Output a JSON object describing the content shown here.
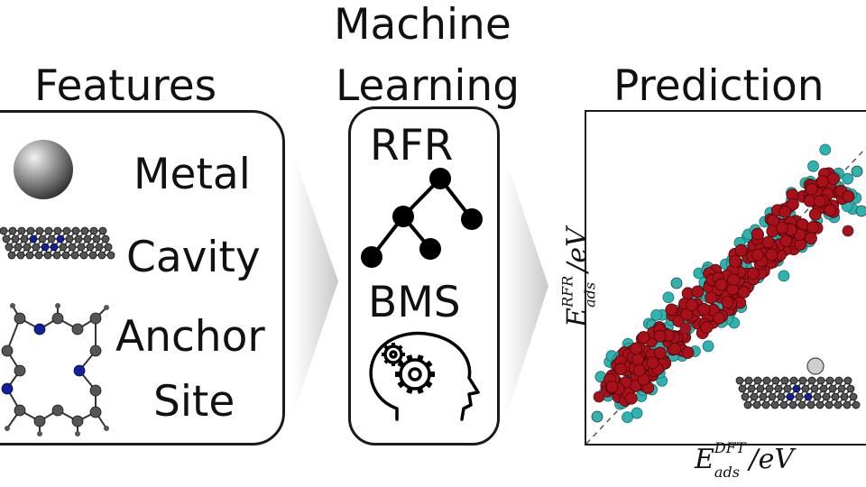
{
  "headings": {
    "features": "Features",
    "ml_line1": "Machine",
    "ml_line2": "Learning",
    "prediction": "Prediction"
  },
  "features": {
    "metal": "Metal",
    "cavity": "Cavity",
    "anchor": "Anchor",
    "site": "Site"
  },
  "ml": {
    "rfr": "RFR",
    "bms": "BMS"
  },
  "axes": {
    "y_label_main": "E",
    "y_label_sub": "ads",
    "y_label_sup": "RFR",
    "y_label_unit": "/eV",
    "x_label_main": "E",
    "x_label_sub": "ads",
    "x_label_sup": "DFT",
    "x_label_unit": "/eV"
  },
  "colors": {
    "rfr_points": "#a8101a",
    "bms_points": "#2fb3b0",
    "arrow": "#d0d0d0",
    "atom_gray": "#555555",
    "atom_blue": "#1020a0"
  },
  "icons": {
    "metal": "metal-sphere-icon",
    "cavity": "graphene-cavity-icon",
    "anchor": "anchor-site-icon",
    "tree": "decision-tree-icon",
    "brain": "gear-head-icon",
    "inset": "single-atom-graphene-icon"
  }
}
